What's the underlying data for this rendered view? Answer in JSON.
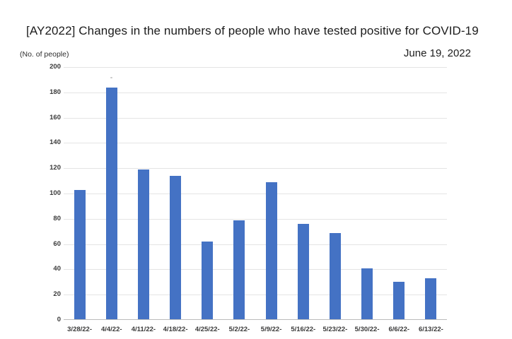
{
  "chart_data": {
    "type": "bar",
    "title": "[AY2022] Changes in the numbers of people who have tested positive for COVID-19",
    "date_annotation": "June 19, 2022",
    "y_unit_label": "(No. of people)",
    "categories": [
      "3/28/22-",
      "4/4/22-",
      "4/11/22-",
      "4/18/22-",
      "4/25/22-",
      "5/2/22-",
      "5/9/22-",
      "5/16/22-",
      "5/23/22-",
      "5/30/22-",
      "6/6/22-",
      "6/13/22-"
    ],
    "values": [
      103,
      184,
      119,
      114,
      62,
      79,
      109,
      76,
      69,
      41,
      30,
      33
    ],
    "xlabel": "",
    "ylabel": "(No. of people)",
    "ylim": [
      0,
      200
    ],
    "y_tick_step": 20,
    "grid": true,
    "legend": "none",
    "colors": {
      "bar": "#4472C4",
      "gridline": "#e4e4e4",
      "axis_line": "#bcbcbc",
      "tick_label": "#3a3a3a",
      "title_text": "#1c1c1c"
    }
  }
}
